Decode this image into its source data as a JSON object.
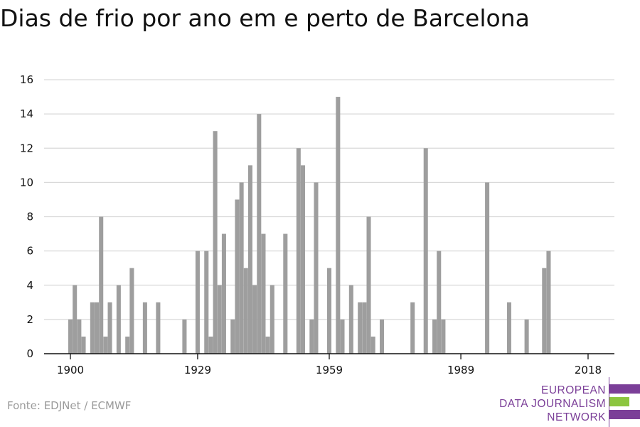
{
  "title": "Dias de frio por ano em e perto de Barcelona",
  "source": "Fonte: EDJNet / ECMWF",
  "logo": {
    "lines": [
      "EUROPEAN",
      "DATA JOURNALISM",
      "NETWORK"
    ],
    "text_color": "#7b3f98",
    "bar_colors": [
      "#7b3f98",
      "#8cc63f",
      "#7b3f98"
    ]
  },
  "colors": {
    "bar": "#9e9e9e",
    "grid": "#d9d9d9",
    "axis": "#111111",
    "tick_text": "#111111"
  },
  "chart_data": {
    "type": "bar",
    "title": "Dias de frio por ano em e perto de Barcelona",
    "xlabel": "",
    "ylabel": "",
    "x_ticks": [
      1900,
      1929,
      1959,
      1989,
      2018
    ],
    "y_ticks": [
      0,
      2,
      4,
      6,
      8,
      10,
      12,
      14,
      16
    ],
    "ylim": [
      0,
      16
    ],
    "xlim": [
      1894,
      2024
    ],
    "grid": true,
    "x": [
      1900,
      1901,
      1902,
      1903,
      1905,
      1906,
      1907,
      1908,
      1909,
      1911,
      1913,
      1914,
      1917,
      1920,
      1926,
      1929,
      1931,
      1932,
      1933,
      1934,
      1935,
      1937,
      1938,
      1939,
      1940,
      1941,
      1942,
      1943,
      1944,
      1945,
      1946,
      1949,
      1952,
      1953,
      1955,
      1956,
      1959,
      1961,
      1962,
      1964,
      1966,
      1967,
      1968,
      1969,
      1971,
      1978,
      1981,
      1983,
      1984,
      1985,
      1995,
      2000,
      2004,
      2008,
      2009,
      2011
    ],
    "values": [
      2,
      4,
      2,
      1,
      3,
      3,
      8,
      1,
      3,
      4,
      1,
      5,
      3,
      3,
      2,
      6,
      6,
      1,
      13,
      4,
      7,
      2,
      9,
      10,
      5,
      11,
      4,
      14,
      7,
      1,
      4,
      7,
      12,
      11,
      2,
      10,
      5,
      15,
      2,
      4,
      3,
      3,
      8,
      1,
      2,
      3,
      12,
      2,
      6,
      2,
      10,
      3,
      2,
      5,
      6,
      0
    ]
  }
}
